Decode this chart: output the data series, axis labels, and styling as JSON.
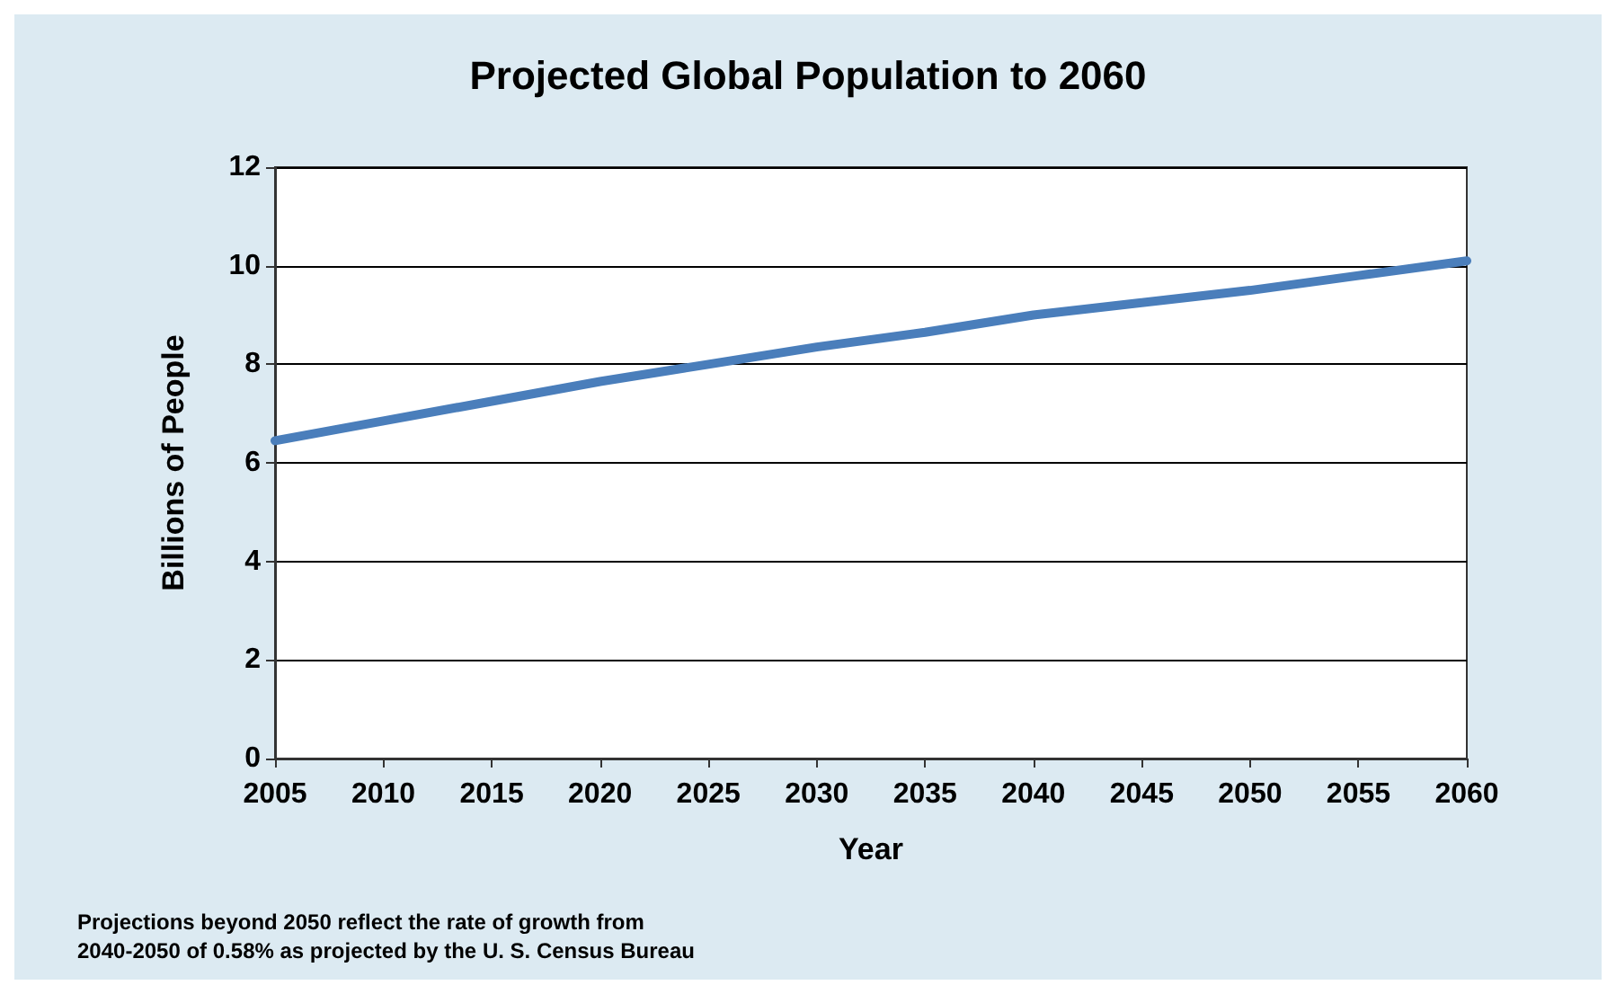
{
  "chart_data": {
    "type": "line",
    "title": "Projected Global Population to 2060",
    "xlabel": "Year",
    "ylabel": "Billions of People",
    "x": [
      2005,
      2010,
      2015,
      2020,
      2025,
      2030,
      2035,
      2040,
      2045,
      2050,
      2055,
      2060
    ],
    "series": [
      {
        "color": "#4a7ebb",
        "values": [
          6.45,
          6.85,
          7.25,
          7.65,
          8.0,
          8.35,
          8.65,
          9.0,
          9.25,
          9.5,
          9.8,
          10.1
        ]
      }
    ],
    "xlim": [
      2005,
      2060
    ],
    "xticks": [
      2005,
      2010,
      2015,
      2020,
      2025,
      2030,
      2035,
      2040,
      2045,
      2050,
      2055,
      2060
    ],
    "ylim": [
      0,
      12
    ],
    "yticks": [
      0,
      2,
      4,
      6,
      8,
      10,
      12
    ],
    "grid": "y",
    "marker": "none",
    "line_style": "solid",
    "annotations": [
      "Projections beyond 2050 reflect the rate of growth from\n2040-2050 of 0.58% as projected by the U. S. Census Bureau"
    ]
  }
}
